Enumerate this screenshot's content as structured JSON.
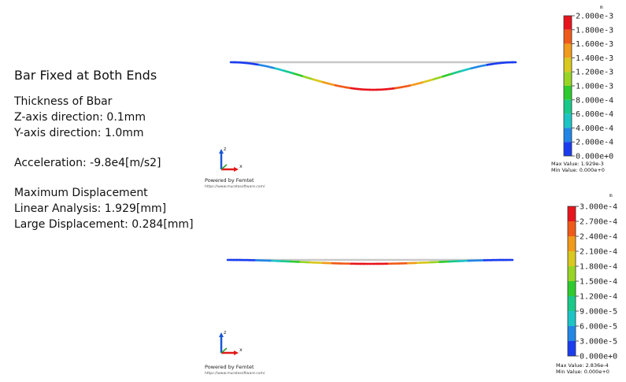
{
  "panel": {
    "title": "Bar Fixed at Both Ends",
    "thickness_heading": "Thickness of Bbar",
    "z_axis": "Z-axis direction: 0.1mm",
    "y_axis": "Y-axis direction: 1.0mm",
    "acceleration": "Acceleration: -9.8e4[m/s2]",
    "max_disp_heading": "Maximum Displacement",
    "linear": "Linear Analysis: 1.929[mm]",
    "large": "Large Displacement: 0.284[mm]"
  },
  "views": [
    {
      "unit": "m",
      "colorbar_labels": [
        "2.000e-3",
        "1.800e-3",
        "1.600e-3",
        "1.400e-3",
        "1.200e-3",
        "1.000e-3",
        "8.000e-4",
        "6.000e-4",
        "4.000e-4",
        "2.000e-4",
        "0.000e+0"
      ],
      "max_value": "Max Value: 1.929e-3",
      "min_value": "Min Value: 0.000e+0",
      "powered": "Powered by Femtet",
      "url": "https://www.muratasoftware.com/",
      "axis_z": "z",
      "axis_x": "x",
      "deflection_fraction": 0.9645
    },
    {
      "unit": "m",
      "colorbar_labels": [
        "3.000e-4",
        "2.700e-4",
        "2.400e-4",
        "2.100e-4",
        "1.800e-4",
        "1.500e-4",
        "1.200e-4",
        "9.000e-5",
        "6.000e-5",
        "3.000e-5",
        "0.000e+0"
      ],
      "max_value": "Max Value: 2.836e-4",
      "min_value": "Min Value: 0.000e+0",
      "powered": "Powered by Femtet",
      "url": "https://www.muratasoftware.com/",
      "axis_z": "z",
      "axis_x": "x",
      "deflection_fraction": 0.945
    }
  ],
  "colors": {
    "scale": [
      "#e8141c",
      "#f05a18",
      "#f29a1a",
      "#d9c81e",
      "#98d424",
      "#2ecb2e",
      "#19c98a",
      "#1cc4c6",
      "#2286e6",
      "#1a3cf0"
    ],
    "undeformed": "#c8c8c8",
    "axis_z": "#1a56d6",
    "axis_x": "#e01818",
    "axis_y": "#2a9a2a"
  }
}
